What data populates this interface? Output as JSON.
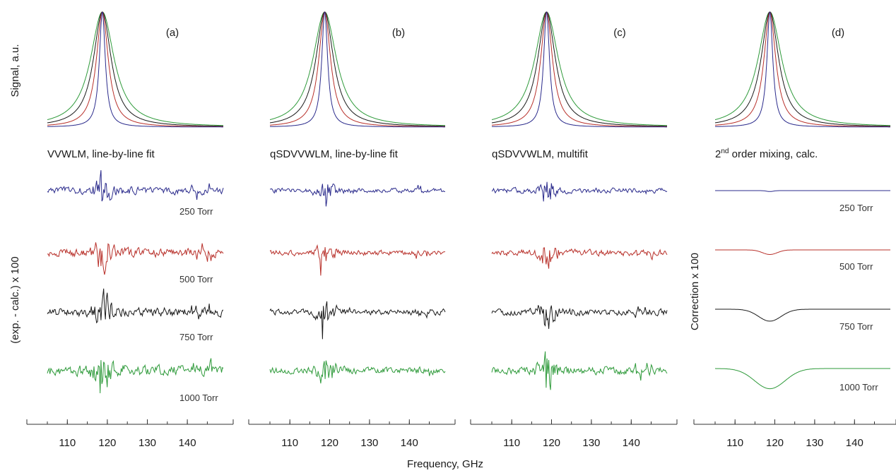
{
  "chart_data": {
    "type": "line",
    "figure": {
      "xlabel": "Frequency, GHz",
      "ylabel_signal": "Signal, a.u.",
      "ylabel_residual": "(exp. - calc.) x 100",
      "ylabel_correction": "Correction x 100"
    },
    "x_ticks": [
      110,
      120,
      130,
      140
    ],
    "xlim": [
      105,
      149
    ],
    "line_center_GHz": 118.75,
    "series": [
      {
        "name": "250 Torr",
        "color": "#2b2b8c",
        "signal_halfwidth_GHz": 0.9,
        "residual_amplitude": 1.0,
        "correction_depth": 0.05
      },
      {
        "name": "500 Torr",
        "color": "#b8302a",
        "signal_halfwidth_GHz": 1.8,
        "residual_amplitude": 1.2,
        "correction_depth": 0.25
      },
      {
        "name": "750 Torr",
        "color": "#1a1a1a",
        "signal_halfwidth_GHz": 2.7,
        "residual_amplitude": 1.3,
        "correction_depth": 0.65
      },
      {
        "name": "1000 Torr",
        "color": "#2e9a3a",
        "signal_halfwidth_GHz": 3.6,
        "residual_amplitude": 1.5,
        "correction_depth": 1.1
      }
    ],
    "panels": [
      {
        "label": "(a)",
        "title": "VVWLM, line-by-line fit",
        "kind": "residual",
        "noise_scale": 1.25,
        "seed": 11
      },
      {
        "label": "(b)",
        "title": "qSDVVWLM, line-by-line fit",
        "kind": "residual",
        "noise_scale": 0.8,
        "seed": 23
      },
      {
        "label": "(c)",
        "title": "qSDVVWLM, multifit",
        "kind": "residual",
        "noise_scale": 0.9,
        "seed": 37
      },
      {
        "label": "(d)",
        "title": "2nd order mixing, calc.",
        "title_main": "2",
        "title_sup": "nd",
        "title_rest": " order mixing, calc.",
        "kind": "correction"
      }
    ]
  }
}
